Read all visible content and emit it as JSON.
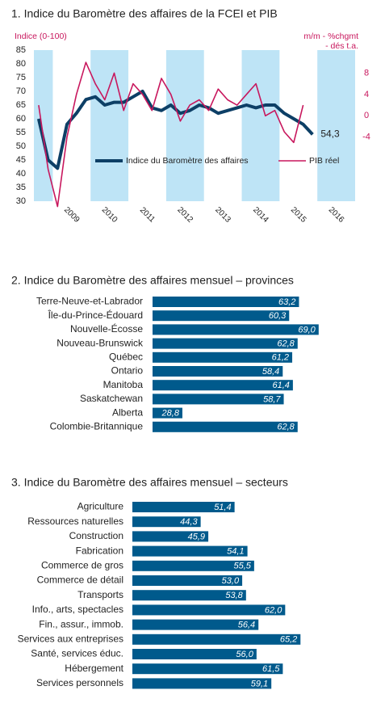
{
  "chart_data": [
    {
      "type": "line",
      "title": "1. Indice du Baromètre des affaires de la FCEI et PIB",
      "y_label": "Indice (0-100)",
      "y2_label": [
        "m/m - %chgmt",
        "- dés t.a."
      ],
      "categories": [
        null,
        null,
        null,
        null,
        "2009",
        null,
        null,
        null,
        "2010",
        null,
        null,
        null,
        "2011",
        null,
        null,
        null,
        "2012",
        null,
        null,
        null,
        "2013",
        null,
        null,
        null,
        "2014",
        null,
        null,
        null,
        "2015",
        null,
        null,
        null,
        "2016",
        null
      ],
      "series": [
        {
          "name": "Indice du Baromètre des affaires",
          "color": "#0d3f66",
          "values": [
            60,
            45,
            42,
            58,
            62,
            67,
            68,
            65,
            66,
            66,
            68,
            70,
            64,
            63,
            65,
            62,
            63,
            65,
            64,
            62,
            63,
            64,
            65,
            64,
            65,
            65,
            62,
            60,
            58,
            54.3,
            null,
            null,
            null,
            null
          ]
        },
        {
          "name": "PIB réel",
          "color": "#c8175d",
          "axis": "y2",
          "values": [
            2,
            -10,
            -17,
            -4,
            4,
            10,
            6,
            3,
            8,
            1,
            6,
            4,
            1,
            7,
            4,
            -1,
            2,
            3,
            1,
            5,
            3,
            2,
            4,
            6,
            0,
            1,
            -3,
            -5,
            2,
            null,
            null,
            null,
            null,
            null
          ]
        }
      ],
      "annotation": "54,3",
      "ylim": [
        30,
        85
      ],
      "yticks": [
        30,
        35,
        40,
        45,
        50,
        55,
        60,
        65,
        70,
        75,
        80,
        85
      ],
      "y2lim": [
        -16,
        12.3
      ],
      "y2ticks": [
        8,
        4,
        0,
        -4
      ],
      "shade_color": "#bee4f6"
    },
    {
      "type": "bar",
      "orientation": "horizontal",
      "title": "2. Indice du Baromètre des affaires mensuel – provinces",
      "categories": [
        "Terre-Neuve-et-Labrador",
        "Île-du-Prince-Édouard",
        "Nouvelle-Écosse",
        "Nouveau-Brunswick",
        "Québec",
        "Ontario",
        "Manitoba",
        "Saskatchewan",
        "Alberta",
        "Colombie-Britannique"
      ],
      "values": [
        63.2,
        60.3,
        69.0,
        62.8,
        61.2,
        58.4,
        61.4,
        58.7,
        28.8,
        62.8
      ],
      "value_labels": [
        "63,2",
        "60,3",
        "69,0",
        "62,8",
        "61,2",
        "58,4",
        "61,4",
        "58,7",
        "28,8",
        "62,8"
      ],
      "color": "#005a8c",
      "xlim": [
        20,
        70
      ]
    },
    {
      "type": "bar",
      "orientation": "horizontal",
      "title": "3. Indice du Baromètre des affaires mensuel – secteurs",
      "categories": [
        "Agriculture",
        "Ressources naturelles",
        "Construction",
        "Fabrication",
        "Commerce de gros",
        "Commerce de détail",
        "Transports",
        "Info., arts, spectacles",
        "Fin., assur., immob.",
        "Services aux entreprises",
        "Santé, services éduc.",
        "Hébergement",
        "Services personnels"
      ],
      "values": [
        51.4,
        44.3,
        45.9,
        54.1,
        55.5,
        53.0,
        53.8,
        62.0,
        56.4,
        65.2,
        56.0,
        61.5,
        59.1
      ],
      "value_labels": [
        "51,4",
        "44,3",
        "45,9",
        "54,1",
        "55,5",
        "53,0",
        "53,8",
        "62,0",
        "56,4",
        "65,2",
        "56,0",
        "61,5",
        "59,1"
      ],
      "color": "#005a8c",
      "xlim": [
        30,
        66
      ]
    }
  ]
}
